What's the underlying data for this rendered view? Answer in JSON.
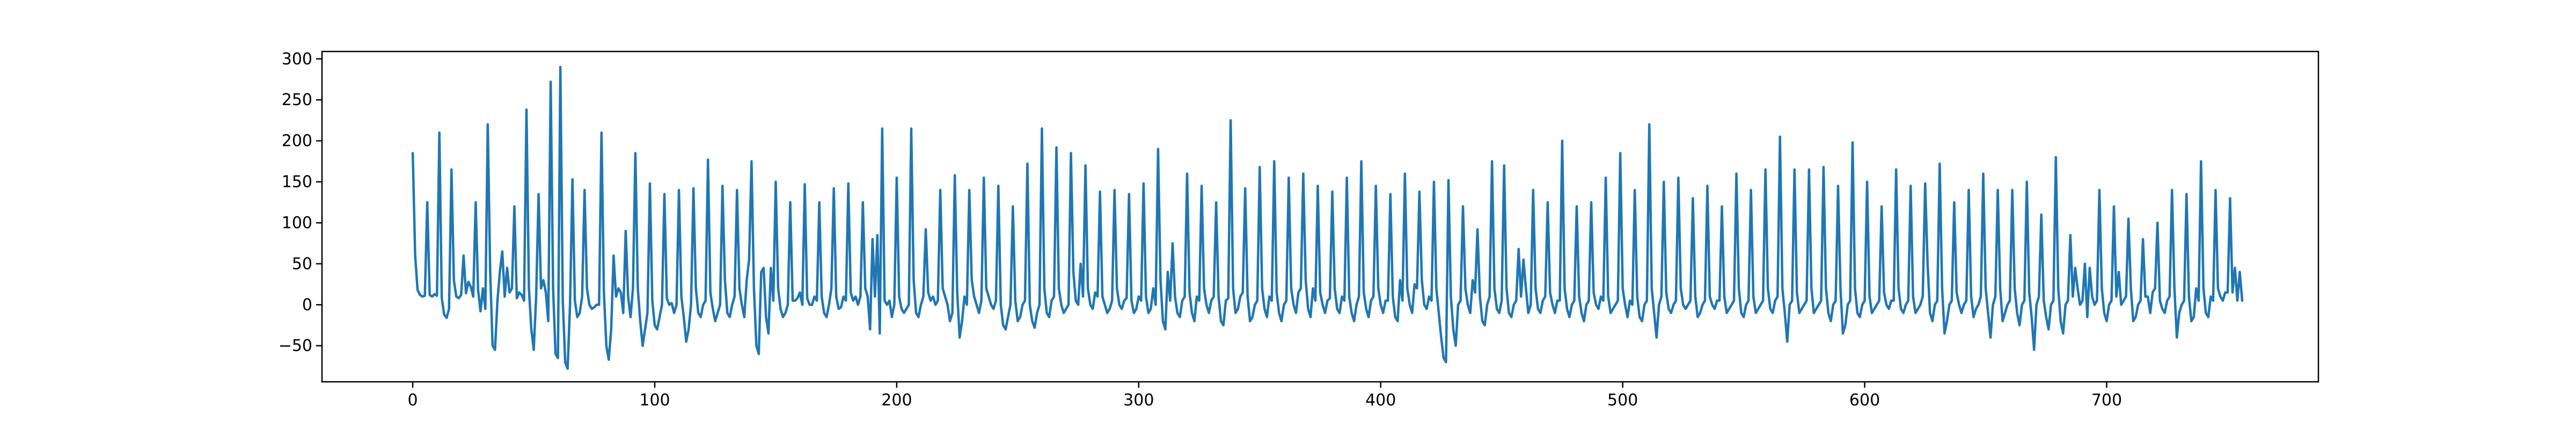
{
  "chart_data": {
    "type": "line",
    "title": "",
    "xlabel": "",
    "ylabel": "",
    "xlim": [
      -37.5,
      787.5
    ],
    "ylim": [
      -94,
      309
    ],
    "grid": false,
    "x_ticks": [
      0,
      100,
      200,
      300,
      400,
      500,
      600,
      700
    ],
    "y_ticks": [
      -50,
      0,
      50,
      100,
      150,
      200,
      250,
      300
    ],
    "x_tick_labels": [
      "0",
      "100",
      "200",
      "300",
      "400",
      "500",
      "600",
      "700"
    ],
    "y_tick_labels": [
      "−50",
      "0",
      "50",
      "100",
      "150",
      "200",
      "250",
      "300"
    ],
    "series": [
      {
        "color": "#1f77b4",
        "x_start": 0,
        "x_step": 1,
        "values": [
          185,
          60,
          18,
          12,
          10,
          11,
          125,
          12,
          10,
          13,
          11,
          210,
          8,
          -12,
          -16,
          -5,
          165,
          30,
          10,
          8,
          12,
          60,
          14,
          28,
          22,
          10,
          125,
          18,
          -8,
          20,
          -5,
          220,
          40,
          -50,
          -55,
          5,
          40,
          65,
          10,
          45,
          15,
          20,
          120,
          8,
          15,
          12,
          5,
          238,
          20,
          -30,
          -55,
          10,
          135,
          20,
          30,
          15,
          -20,
          272,
          20,
          -60,
          -65,
          290,
          5,
          -70,
          -78,
          0,
          153,
          5,
          -15,
          -10,
          10,
          140,
          20,
          0,
          -5,
          -3,
          0,
          0,
          210,
          15,
          -50,
          -67,
          -30,
          60,
          10,
          20,
          15,
          -10,
          90,
          10,
          -15,
          20,
          185,
          20,
          -20,
          -50,
          -30,
          -10,
          148,
          5,
          -25,
          -30,
          -15,
          0,
          135,
          8,
          0,
          2,
          -10,
          0,
          140,
          10,
          -15,
          -45,
          -30,
          0,
          142,
          20,
          -10,
          -15,
          0,
          5,
          177,
          15,
          -5,
          -20,
          -10,
          0,
          145,
          30,
          -10,
          -15,
          0,
          10,
          140,
          20,
          0,
          -15,
          30,
          55,
          175,
          20,
          -50,
          -60,
          40,
          45,
          -15,
          -35,
          45,
          5,
          150,
          20,
          -5,
          -15,
          -10,
          0,
          125,
          5,
          5,
          8,
          15,
          0,
          147,
          8,
          0,
          0,
          10,
          5,
          125,
          10,
          -10,
          -15,
          0,
          20,
          142,
          10,
          -5,
          -3,
          10,
          5,
          148,
          15,
          5,
          10,
          0,
          10,
          125,
          20,
          10,
          -30,
          80,
          10,
          85,
          -35,
          215,
          5,
          0,
          5,
          -15,
          0,
          155,
          10,
          -5,
          -10,
          -5,
          0,
          215,
          30,
          -10,
          -15,
          0,
          10,
          92,
          15,
          5,
          10,
          0,
          5,
          140,
          20,
          10,
          0,
          -20,
          -10,
          158,
          15,
          -40,
          -20,
          10,
          0,
          140,
          30,
          10,
          0,
          -10,
          5,
          155,
          20,
          10,
          0,
          -5,
          5,
          145,
          0,
          -25,
          -30,
          -15,
          0,
          120,
          5,
          -20,
          -15,
          0,
          5,
          172,
          0,
          -20,
          -28,
          -10,
          0,
          215,
          20,
          -10,
          -15,
          5,
          10,
          192,
          20,
          0,
          -10,
          -5,
          0,
          185,
          40,
          5,
          0,
          50,
          10,
          170,
          20,
          0,
          -5,
          15,
          10,
          138,
          10,
          0,
          -10,
          -5,
          5,
          140,
          20,
          0,
          -5,
          5,
          8,
          135,
          5,
          -10,
          -5,
          10,
          5,
          148,
          10,
          -10,
          -5,
          20,
          0,
          190,
          30,
          -20,
          -30,
          40,
          5,
          75,
          10,
          -10,
          -15,
          5,
          10,
          160,
          15,
          -10,
          -20,
          10,
          5,
          145,
          20,
          0,
          -10,
          5,
          10,
          125,
          10,
          -20,
          -25,
          5,
          8,
          225,
          20,
          -10,
          -5,
          10,
          15,
          142,
          10,
          -20,
          -15,
          0,
          5,
          168,
          20,
          -5,
          -15,
          10,
          5,
          175,
          15,
          -10,
          -20,
          0,
          5,
          155,
          20,
          0,
          -10,
          15,
          20,
          160,
          30,
          -5,
          -15,
          20,
          5,
          145,
          15,
          0,
          -10,
          5,
          8,
          138,
          20,
          -5,
          -10,
          10,
          5,
          155,
          10,
          -10,
          -20,
          0,
          10,
          175,
          15,
          -5,
          -15,
          5,
          10,
          145,
          20,
          0,
          -10,
          5,
          5,
          135,
          10,
          -15,
          -20,
          30,
          5,
          160,
          20,
          0,
          -10,
          25,
          20,
          138,
          30,
          0,
          -5,
          10,
          5,
          150,
          20,
          -10,
          -40,
          -65,
          -70,
          152,
          10,
          -30,
          -50,
          0,
          5,
          120,
          20,
          0,
          -10,
          30,
          15,
          92,
          10,
          -20,
          -25,
          0,
          10,
          175,
          20,
          -5,
          -10,
          5,
          170,
          20,
          -10,
          -15,
          0,
          5,
          68,
          10,
          55,
          20,
          -10,
          0,
          140,
          20,
          -5,
          -10,
          5,
          10,
          125,
          15,
          0,
          -10,
          5,
          5,
          200,
          20,
          -5,
          -15,
          0,
          5,
          120,
          10,
          -10,
          -20,
          0,
          5,
          125,
          15,
          0,
          -5,
          10,
          5,
          155,
          10,
          -10,
          -5,
          0,
          5,
          185,
          20,
          0,
          -15,
          5,
          0,
          140,
          10,
          -15,
          -20,
          0,
          5,
          220,
          20,
          -10,
          -40,
          0,
          10,
          150,
          15,
          -5,
          -10,
          0,
          5,
          155,
          20,
          0,
          -5,
          0,
          5,
          130,
          10,
          -15,
          -10,
          0,
          5,
          145,
          10,
          0,
          -5,
          5,
          5,
          120,
          10,
          -10,
          -5,
          0,
          5,
          160,
          20,
          -10,
          -15,
          0,
          5,
          140,
          10,
          -10,
          -5,
          0,
          5,
          165,
          20,
          -5,
          -10,
          5,
          10,
          205,
          20,
          -10,
          -45,
          0,
          5,
          165,
          15,
          -10,
          -5,
          0,
          5,
          165,
          20,
          -10,
          -5,
          0,
          5,
          168,
          20,
          -10,
          -20,
          0,
          5,
          145,
          20,
          -35,
          -25,
          0,
          5,
          198,
          20,
          -10,
          -15,
          0,
          5,
          150,
          10,
          -10,
          -5,
          0,
          5,
          120,
          15,
          0,
          -5,
          5,
          5,
          165,
          20,
          -5,
          -10,
          0,
          5,
          145,
          10,
          -10,
          -5,
          0,
          10,
          148,
          50,
          -10,
          -20,
          0,
          5,
          172,
          20,
          -35,
          -20,
          0,
          5,
          125,
          15,
          0,
          -10,
          0,
          5,
          140,
          10,
          -15,
          -5,
          0,
          10,
          160,
          20,
          -10,
          -40,
          0,
          10,
          140,
          20,
          -20,
          -10,
          0,
          5,
          140,
          20,
          -10,
          -25,
          0,
          5,
          150,
          15,
          -15,
          -55,
          0,
          10,
          110,
          5,
          -15,
          -30,
          0,
          5,
          180,
          20,
          -20,
          -35,
          0,
          5,
          85,
          10,
          45,
          20,
          0,
          5,
          50,
          -15,
          45,
          10,
          0,
          5,
          140,
          20,
          -10,
          -20,
          0,
          5,
          120,
          10,
          40,
          0,
          5,
          10,
          105,
          20,
          -20,
          -15,
          0,
          5,
          80,
          10,
          10,
          -10,
          15,
          20,
          100,
          5,
          -5,
          -10,
          5,
          10,
          140,
          20,
          -40,
          -10,
          0,
          5,
          135,
          10,
          -20,
          -15,
          20,
          5,
          175,
          20,
          -10,
          -15,
          10,
          5,
          140,
          20,
          10,
          5,
          15,
          15,
          130,
          15,
          45,
          5,
          40,
          5
        ]
      }
    ]
  }
}
